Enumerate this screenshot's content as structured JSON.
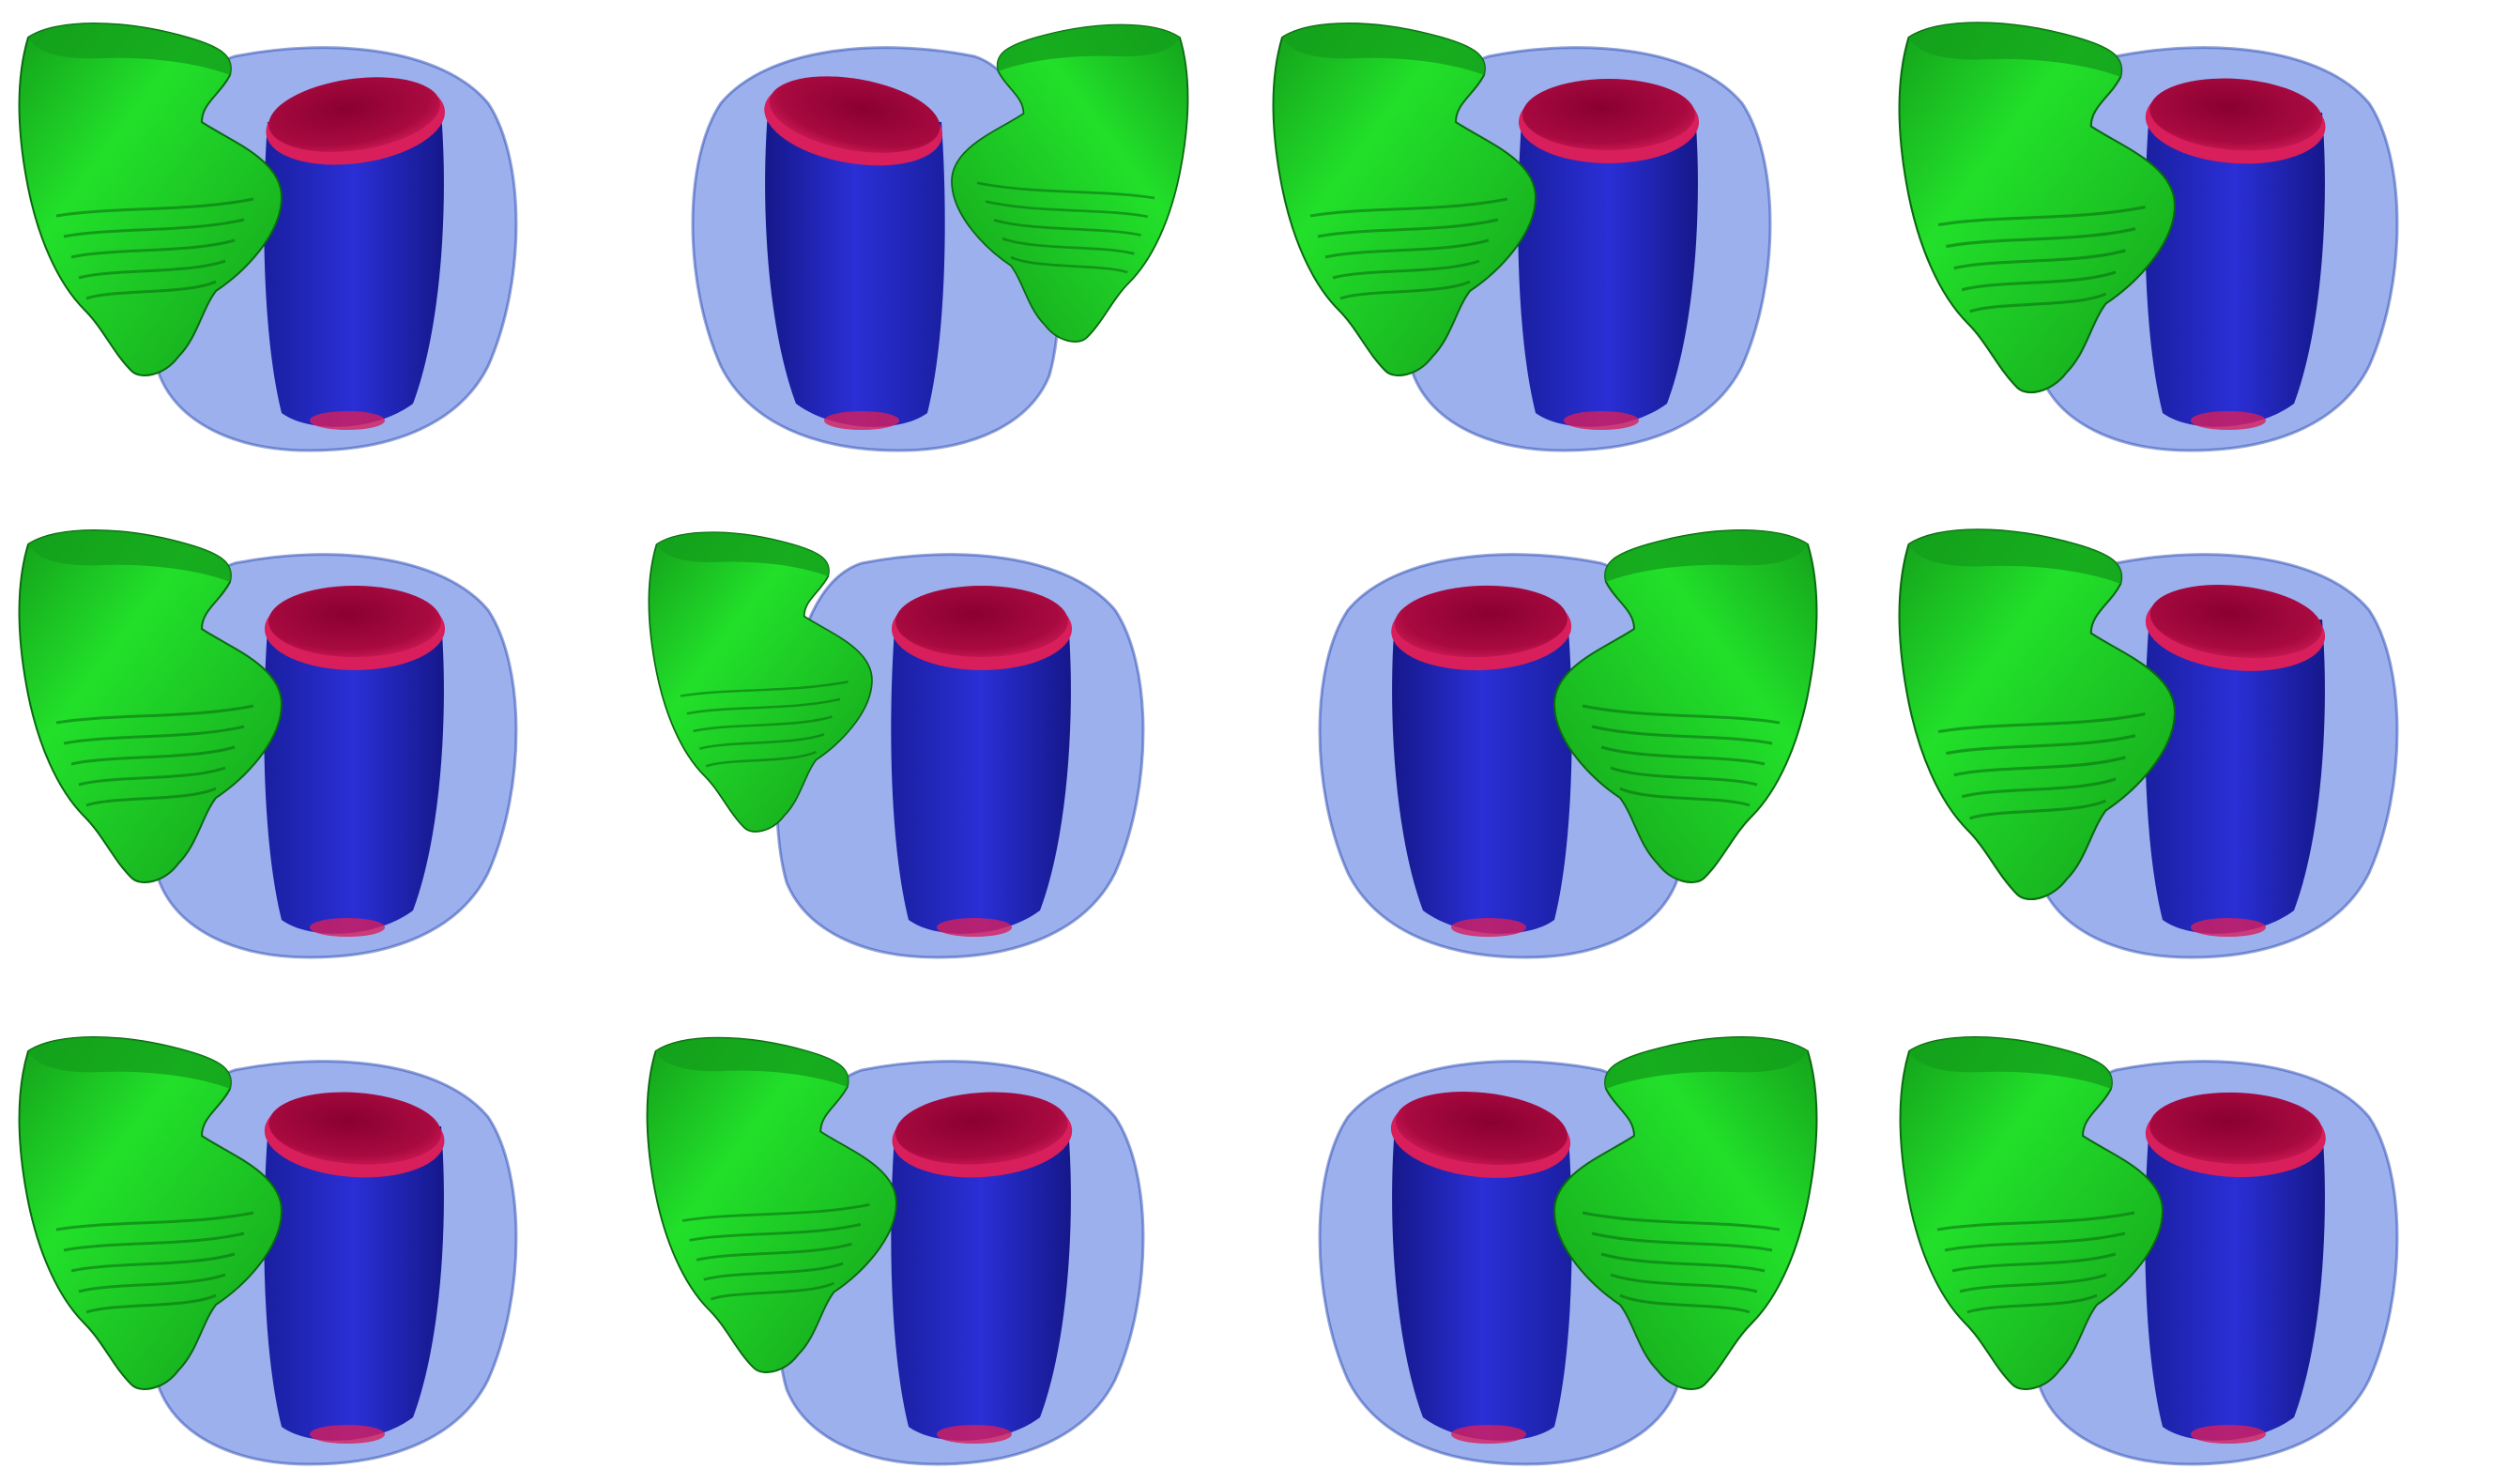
{
  "figure": {
    "rows": 3,
    "columns": 4,
    "panel_count": 12
  },
  "structures": {
    "epicardium": {
      "name": "myocardium-shell",
      "color": "#4a6fe0",
      "opacity": 0.55
    },
    "lv_cavity": {
      "name": "left-ventricle-blood-pool",
      "color": "#2a2fd6"
    },
    "lv_cap": {
      "name": "left-ventricle-cap",
      "color": "#d81e5b",
      "cap_dark": "#8a0030"
    },
    "rv": {
      "name": "right-ventricle",
      "color": "#22e02a",
      "shade": "#14a01b",
      "dark": "#0a6a10"
    }
  },
  "views": [
    {
      "id": 1,
      "rv_side": "left",
      "cap_tilt": -8,
      "rv_scale": 1.0
    },
    {
      "id": 2,
      "rv_side": "right",
      "cap_tilt": -10,
      "rv_scale": 0.9
    },
    {
      "id": 3,
      "rv_side": "left",
      "cap_tilt": 0,
      "rv_scale": 1.0
    },
    {
      "id": 4,
      "rv_side": "left",
      "cap_tilt": 4,
      "rv_scale": 1.05
    },
    {
      "id": 5,
      "rv_side": "left",
      "cap_tilt": 0,
      "rv_scale": 1.0
    },
    {
      "id": 6,
      "rv_side": "left",
      "cap_tilt": 0,
      "rv_scale": 0.85
    },
    {
      "id": 7,
      "rv_side": "right",
      "cap_tilt": 2,
      "rv_scale": 1.0
    },
    {
      "id": 8,
      "rv_side": "left",
      "cap_tilt": 6,
      "rv_scale": 1.05
    },
    {
      "id": 9,
      "rv_side": "left",
      "cap_tilt": 4,
      "rv_scale": 1.0
    },
    {
      "id": 10,
      "rv_side": "left",
      "cap_tilt": -4,
      "rv_scale": 0.95
    },
    {
      "id": 11,
      "rv_side": "right",
      "cap_tilt": -6,
      "rv_scale": 1.0
    },
    {
      "id": 12,
      "rv_side": "left",
      "cap_tilt": 2,
      "rv_scale": 1.0
    }
  ]
}
